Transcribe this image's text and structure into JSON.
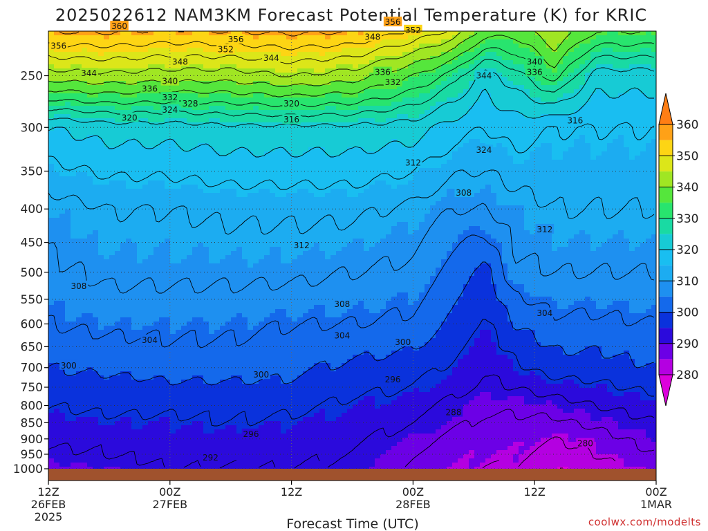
{
  "chart_data": {
    "type": "heatmap",
    "title": "2025022612 NAM3KM Forecast Potential Temperature (K) for KRIC",
    "xlabel": "Forecast Time (UTC)",
    "ylabel": "",
    "y_scale": "log",
    "y_reversed": true,
    "y_range_hpa": [
      1000,
      200
    ],
    "y_ticks": [
      250,
      300,
      350,
      400,
      450,
      500,
      550,
      600,
      650,
      700,
      750,
      800,
      850,
      900,
      950,
      1000
    ],
    "x_ticks": [
      {
        "hour": 0,
        "lines": [
          "12Z",
          "26FEB",
          "2025"
        ]
      },
      {
        "hour": 12,
        "lines": [
          "00Z",
          "27FEB"
        ]
      },
      {
        "hour": 24,
        "lines": [
          "12Z"
        ]
      },
      {
        "hour": 36,
        "lines": [
          "00Z",
          "28FEB"
        ]
      },
      {
        "hour": 48,
        "lines": [
          "12Z"
        ]
      },
      {
        "hour": 60,
        "lines": [
          "00Z",
          "1MAR"
        ]
      }
    ],
    "x_range_hours": [
      0,
      60
    ],
    "grid": true,
    "colorbar": {
      "position": "right",
      "ticks": [
        280,
        290,
        300,
        310,
        320,
        330,
        340,
        350,
        360
      ],
      "colors": [
        "#dc00dc",
        "#8c00e6",
        "#4b00e6",
        "#0a0ad2",
        "#0a4ee6",
        "#1b82f0",
        "#19b4f0",
        "#14cdb4",
        "#1ee08c",
        "#3ce632",
        "#9be61e",
        "#e6e60f",
        "#ffd214",
        "#ffaa19",
        "#ff7d14"
      ]
    },
    "profile_times_hours": [
      0,
      6,
      12,
      18,
      24,
      30,
      36,
      40,
      43,
      46,
      50,
      54,
      60
    ],
    "profiles_K": [
      {
        "hour": 0,
        "p": [
          1000,
          950,
          900,
          850,
          800,
          750,
          700,
          600,
          500,
          400,
          300,
          250,
          200
        ],
        "theta": [
          289,
          291,
          293,
          294,
          296,
          298,
          300,
          304,
          307,
          310,
          320,
          342,
          362
        ]
      },
      {
        "hour": 6,
        "p": [
          1000,
          950,
          900,
          850,
          800,
          750,
          700,
          600,
          500,
          400,
          300,
          250,
          200
        ],
        "theta": [
          290,
          292,
          293,
          295,
          297,
          298,
          301,
          305,
          309,
          312,
          322,
          343,
          362
        ]
      },
      {
        "hour": 12,
        "p": [
          1000,
          950,
          900,
          850,
          800,
          750,
          700,
          600,
          500,
          400,
          300,
          250,
          200
        ],
        "theta": [
          292,
          293,
          294,
          295,
          297,
          299,
          302,
          305,
          309,
          312,
          322,
          342,
          361
        ]
      },
      {
        "hour": 18,
        "p": [
          1000,
          950,
          900,
          850,
          800,
          750,
          700,
          600,
          500,
          400,
          300,
          250,
          200
        ],
        "theta": [
          292,
          293,
          294,
          296,
          297,
          299,
          302,
          305,
          309,
          313,
          323,
          342,
          362
        ]
      },
      {
        "hour": 24,
        "p": [
          1000,
          950,
          900,
          850,
          800,
          750,
          700,
          600,
          500,
          400,
          300,
          250,
          200
        ],
        "theta": [
          292,
          293,
          294,
          295,
          297,
          299,
          301,
          304,
          309,
          313,
          323,
          344,
          362
        ]
      },
      {
        "hour": 30,
        "p": [
          1000,
          950,
          900,
          850,
          800,
          750,
          700,
          600,
          500,
          400,
          300,
          250,
          200
        ],
        "theta": [
          291,
          292,
          293,
          294,
          295,
          297,
          299,
          304,
          308,
          313,
          323,
          342,
          362
        ]
      },
      {
        "hour": 36,
        "p": [
          1000,
          950,
          900,
          850,
          800,
          750,
          700,
          600,
          500,
          400,
          300,
          250,
          200
        ],
        "theta": [
          287,
          288,
          290,
          292,
          294,
          296,
          298,
          303,
          307,
          311,
          322,
          336,
          358
        ]
      },
      {
        "hour": 40,
        "p": [
          1000,
          950,
          900,
          850,
          800,
          750,
          700,
          600,
          500,
          400,
          300,
          250,
          200
        ],
        "theta": [
          285,
          286,
          287,
          289,
          291,
          293,
          295,
          298,
          302,
          308,
          318,
          330,
          354
        ]
      },
      {
        "hour": 43,
        "p": [
          1000,
          950,
          900,
          850,
          800,
          750,
          700,
          600,
          500,
          400,
          300,
          250,
          200
        ],
        "theta": [
          284,
          285,
          286,
          287,
          289,
          291,
          292,
          295,
          298,
          308,
          316,
          322,
          345
        ]
      },
      {
        "hour": 46,
        "p": [
          1000,
          950,
          900,
          850,
          800,
          750,
          700,
          600,
          500,
          400,
          300,
          250,
          200
        ],
        "theta": [
          284,
          285,
          286,
          287,
          289,
          292,
          295,
          300,
          307,
          310,
          318,
          326,
          342
        ]
      },
      {
        "hour": 50,
        "p": [
          1000,
          950,
          900,
          850,
          800,
          750,
          700,
          600,
          500,
          400,
          300,
          250,
          200
        ],
        "theta": [
          280,
          282,
          284,
          287,
          290,
          294,
          298,
          303,
          308,
          312,
          316,
          334,
          348
        ]
      },
      {
        "hour": 54,
        "p": [
          1000,
          950,
          900,
          850,
          800,
          750,
          700,
          600,
          500,
          400,
          300,
          250,
          200
        ],
        "theta": [
          282,
          284,
          286,
          289,
          292,
          295,
          298,
          303,
          308,
          312,
          316,
          322,
          342
        ]
      },
      {
        "hour": 60,
        "p": [
          1000,
          950,
          900,
          850,
          800,
          750,
          700,
          600,
          500,
          400,
          300,
          250,
          200
        ],
        "theta": [
          286,
          288,
          290,
          292,
          294,
          297,
          300,
          304,
          308,
          312,
          316,
          322,
          342
        ]
      }
    ],
    "contour_labels": [
      {
        "value": 360,
        "hour": 7,
        "p": 210
      },
      {
        "value": 356,
        "hour": 1,
        "p": 225
      },
      {
        "value": 356,
        "hour": 18.5,
        "p": 220
      },
      {
        "value": 352,
        "hour": 17.5,
        "p": 228
      },
      {
        "value": 356,
        "hour": 34,
        "p": 207
      },
      {
        "value": 352,
        "hour": 36,
        "p": 213
      },
      {
        "value": 348,
        "hour": 32,
        "p": 218
      },
      {
        "value": 348,
        "hour": 13,
        "p": 238
      },
      {
        "value": 344,
        "hour": 22,
        "p": 235
      },
      {
        "value": 344,
        "hour": 4,
        "p": 248
      },
      {
        "value": 340,
        "hour": 12,
        "p": 255
      },
      {
        "value": 336,
        "hour": 10,
        "p": 262
      },
      {
        "value": 332,
        "hour": 12,
        "p": 270
      },
      {
        "value": 328,
        "hour": 14,
        "p": 276
      },
      {
        "value": 324,
        "hour": 12,
        "p": 282
      },
      {
        "value": 320,
        "hour": 8,
        "p": 290
      },
      {
        "value": 320,
        "hour": 24,
        "p": 276
      },
      {
        "value": 316,
        "hour": 24,
        "p": 292
      },
      {
        "value": 336,
        "hour": 33,
        "p": 247
      },
      {
        "value": 332,
        "hour": 34,
        "p": 256
      },
      {
        "value": 344,
        "hour": 43,
        "p": 250
      },
      {
        "value": 340,
        "hour": 48,
        "p": 238
      },
      {
        "value": 336,
        "hour": 48,
        "p": 247
      },
      {
        "value": 324,
        "hour": 43,
        "p": 325
      },
      {
        "value": 316,
        "hour": 52,
        "p": 293
      },
      {
        "value": 312,
        "hour": 36,
        "p": 340
      },
      {
        "value": 308,
        "hour": 41,
        "p": 378
      },
      {
        "value": 312,
        "hour": 49,
        "p": 430
      },
      {
        "value": 312,
        "hour": 25,
        "p": 455
      },
      {
        "value": 308,
        "hour": 3,
        "p": 525
      },
      {
        "value": 308,
        "hour": 29,
        "p": 560
      },
      {
        "value": 304,
        "hour": 10,
        "p": 635
      },
      {
        "value": 304,
        "hour": 29,
        "p": 625
      },
      {
        "value": 300,
        "hour": 35,
        "p": 640
      },
      {
        "value": 300,
        "hour": 2,
        "p": 695
      },
      {
        "value": 300,
        "hour": 21,
        "p": 718
      },
      {
        "value": 296,
        "hour": 34,
        "p": 730
      },
      {
        "value": 304,
        "hour": 49,
        "p": 578
      },
      {
        "value": 296,
        "hour": 20,
        "p": 885
      },
      {
        "value": 288,
        "hour": 40,
        "p": 820
      },
      {
        "value": 280,
        "hour": 53,
        "p": 915
      },
      {
        "value": 292,
        "hour": 16,
        "p": 962
      }
    ]
  },
  "credit": "coolwx.com/modelts"
}
